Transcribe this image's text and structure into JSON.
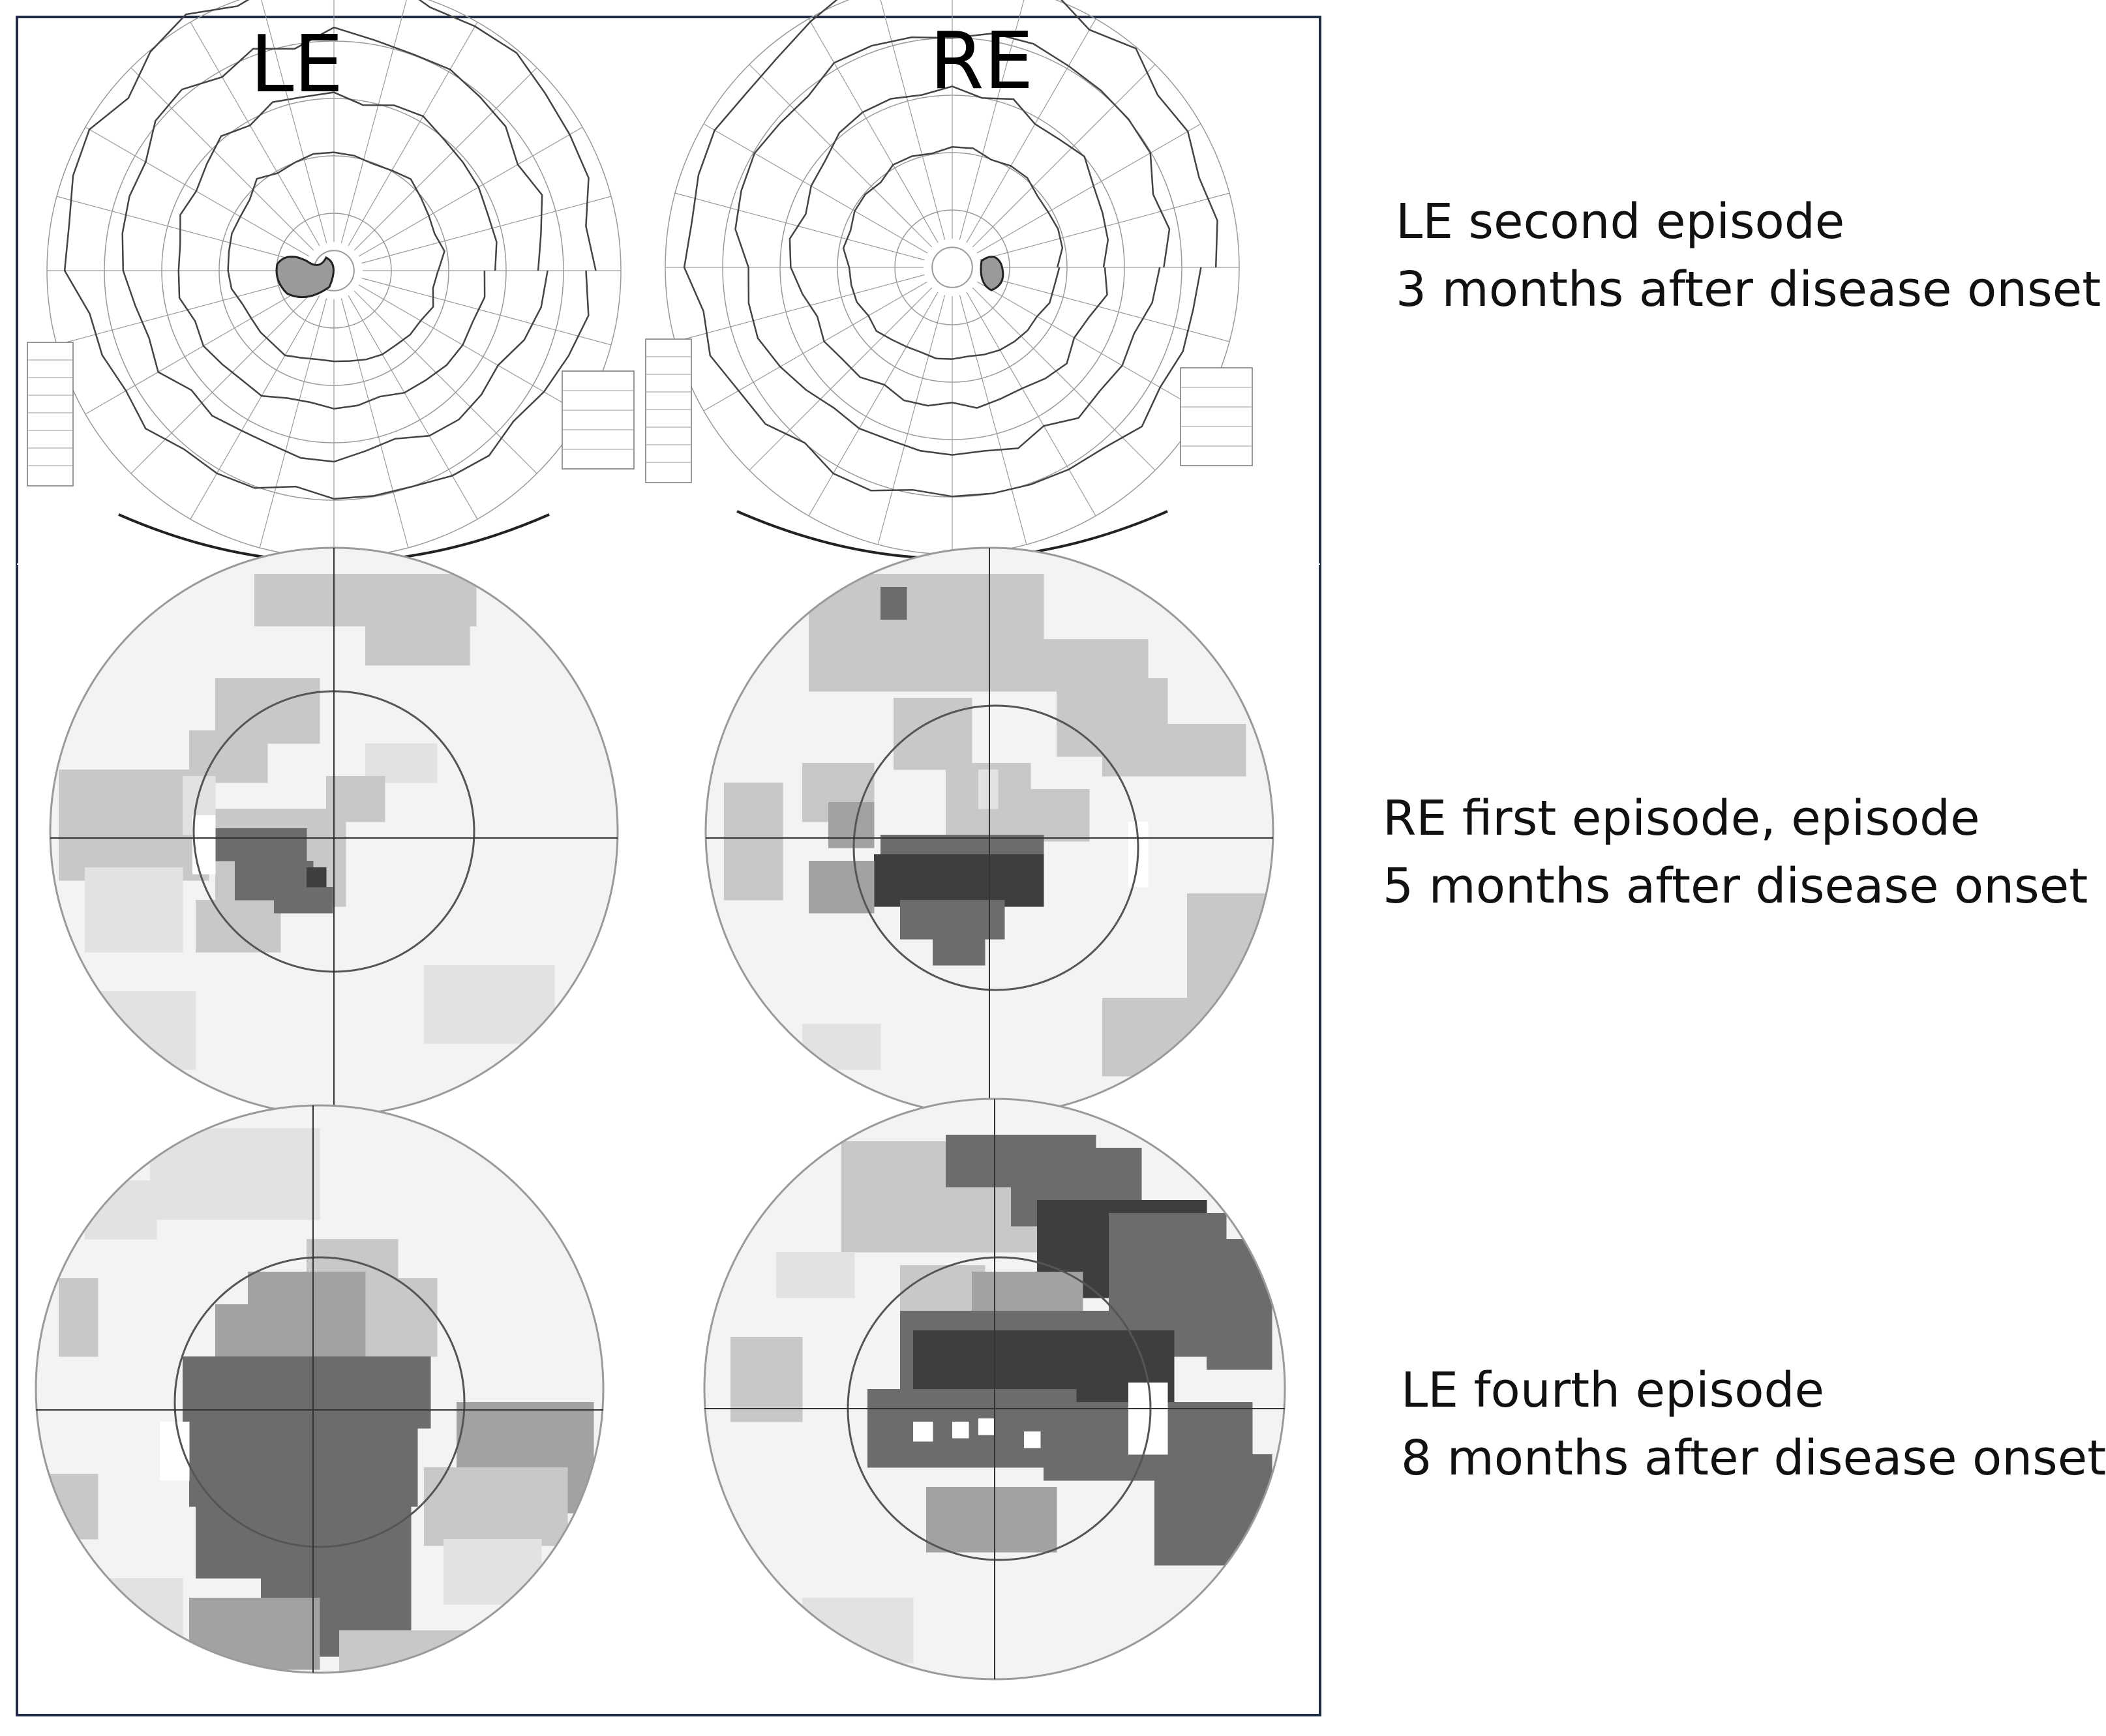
{
  "eye_labels": {
    "left": "LE",
    "right": "RE"
  },
  "captions": [
    {
      "line1": "LE second episode",
      "line2": "3 months after disease onset"
    },
    {
      "line1": "RE first episode, episode",
      "line2": "5 months after disease onset"
    },
    {
      "line1": "LE fourth episode",
      "line2": "8 months after disease onset"
    }
  ],
  "colors": {
    "frame": "#1f2a44",
    "grid_line": "#9a9a9a",
    "isopter": "#444444",
    "level_1": "#e2e2e2",
    "level_2": "#c8c8c8",
    "level_3": "#a2a2a2",
    "level_4": "#6c6c6c",
    "level_5": "#3e3e3e"
  }
}
